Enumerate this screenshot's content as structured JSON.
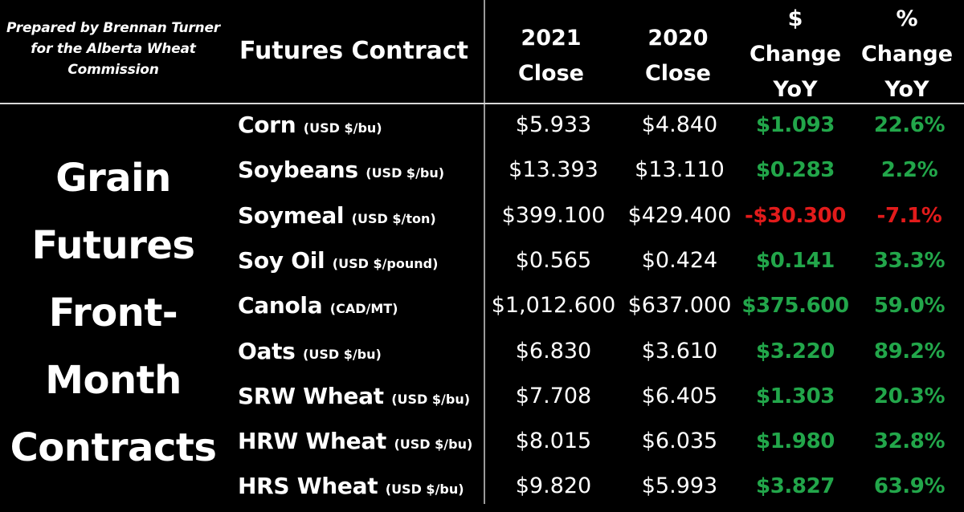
{
  "credit": {
    "line1": "Prepared by Brennan Turner",
    "line2": "for the Alberta Wheat",
    "line3": "Commission"
  },
  "side_title": {
    "line1": "Grain",
    "line2": "Futures",
    "line3": "Front-",
    "line4": "Month",
    "line5": "Contracts"
  },
  "header": {
    "contract": "Futures Contract",
    "close_2021_line1": "2021",
    "close_2021_line2": "Close",
    "close_2020_line1": "2020",
    "close_2020_line2": "Close",
    "dollar_change_line1": "$",
    "dollar_change_line2": "Change",
    "dollar_change_line3": "YoY",
    "pct_change_line1": "%",
    "pct_change_line2": "Change",
    "pct_change_line3": "YoY"
  },
  "colors": {
    "positive": "#22a64a",
    "negative": "#e21b1b",
    "text": "#ffffff",
    "background": "#000000"
  },
  "rows": [
    {
      "name": "Corn",
      "unit": "(USD $/bu)",
      "close_2021": "$5.933",
      "close_2020": "$4.840",
      "dollar_change": "$1.093",
      "pct_change": "22.6%",
      "direction": "up"
    },
    {
      "name": "Soybeans",
      "unit": "(USD $/bu)",
      "close_2021": "$13.393",
      "close_2020": "$13.110",
      "dollar_change": "$0.283",
      "pct_change": "2.2%",
      "direction": "up"
    },
    {
      "name": "Soymeal",
      "unit": "(USD $/ton)",
      "close_2021": "$399.100",
      "close_2020": "$429.400",
      "dollar_change": "-$30.300",
      "pct_change": "-7.1%",
      "direction": "down"
    },
    {
      "name": "Soy Oil",
      "unit": "(USD $/pound)",
      "close_2021": "$0.565",
      "close_2020": "$0.424",
      "dollar_change": "$0.141",
      "pct_change": "33.3%",
      "direction": "up"
    },
    {
      "name": "Canola",
      "unit": "(CAD/MT)",
      "close_2021": "$1,012.600",
      "close_2020": "$637.000",
      "dollar_change": "$375.600",
      "pct_change": "59.0%",
      "direction": "up"
    },
    {
      "name": "Oats",
      "unit": "(USD $/bu)",
      "close_2021": "$6.830",
      "close_2020": "$3.610",
      "dollar_change": "$3.220",
      "pct_change": "89.2%",
      "direction": "up"
    },
    {
      "name": "SRW Wheat",
      "unit": "(USD $/bu)",
      "close_2021": "$7.708",
      "close_2020": "$6.405",
      "dollar_change": "$1.303",
      "pct_change": "20.3%",
      "direction": "up"
    },
    {
      "name": "HRW Wheat",
      "unit": "(USD $/bu)",
      "close_2021": "$8.015",
      "close_2020": "$6.035",
      "dollar_change": "$1.980",
      "pct_change": "32.8%",
      "direction": "up"
    },
    {
      "name": "HRS Wheat",
      "unit": "(USD $/bu)",
      "close_2021": "$9.820",
      "close_2020": "$5.993",
      "dollar_change": "$3.827",
      "pct_change": "63.9%",
      "direction": "up"
    }
  ]
}
